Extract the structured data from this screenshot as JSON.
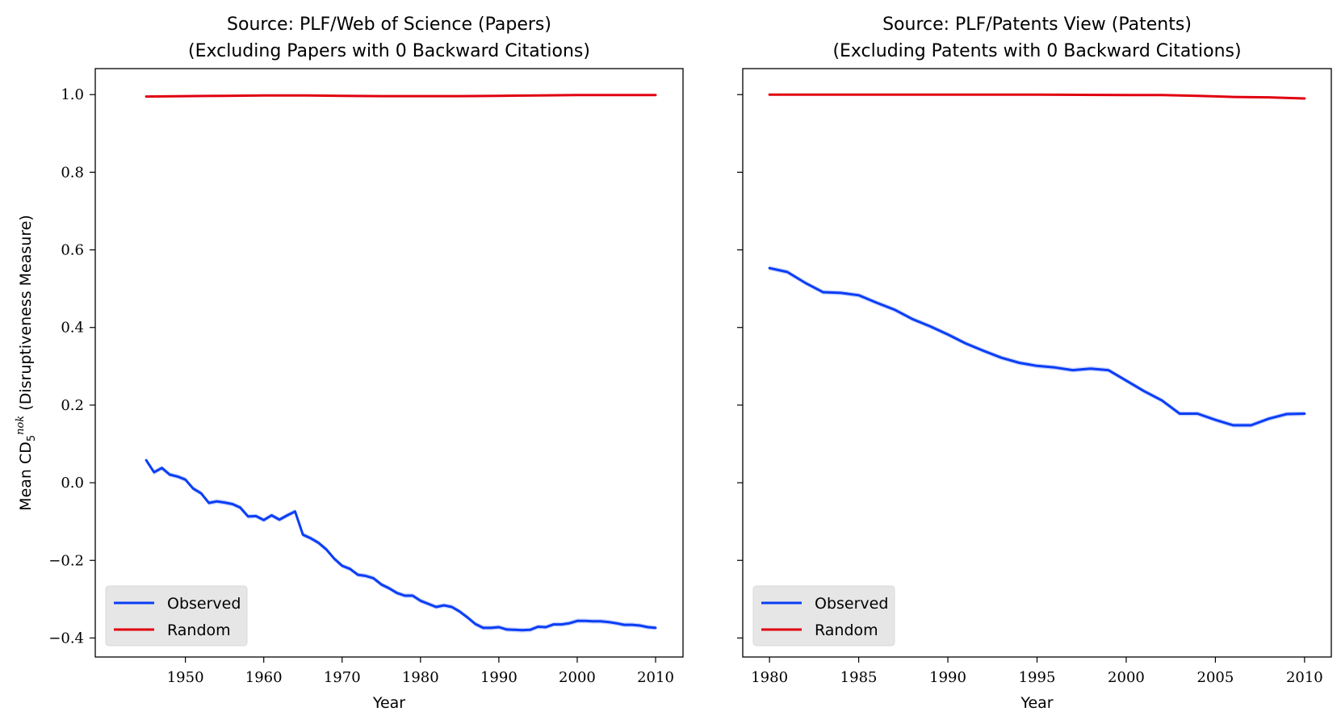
{
  "colors": {
    "observed": "#0b3df5",
    "random": "#e0000f",
    "band": "#9fb4ff"
  },
  "chart_data": [
    {
      "type": "line",
      "title": "Source: PLF/Web of Science (Papers)",
      "subtitle": "(Excluding Papers with 0 Backward Citations)",
      "xlabel": "Year",
      "ylabel": "Mean CD5nok (Disruptiveness Measure)",
      "ylabel_parts": {
        "main": "Mean CD",
        "sub": "5",
        "sup": "nok",
        "rest": " (Disruptiveness Measure)"
      },
      "xlim": [
        1938.5,
        2013.5
      ],
      "ylim": [
        -0.449,
        1.067
      ],
      "xticks": [
        1950,
        1960,
        1970,
        1980,
        1990,
        2000,
        2010
      ],
      "xtick_labels": [
        "1950",
        "1960",
        "1970",
        "1980",
        "1990",
        "2000",
        "2010"
      ],
      "yticks": [
        -0.4,
        -0.2,
        0.0,
        0.2,
        0.4,
        0.6,
        0.8,
        1.0
      ],
      "ytick_labels": [
        "−0.4",
        "−0.2",
        "0.0",
        "0.2",
        "0.4",
        "0.6",
        "0.8",
        "1.0"
      ],
      "show_ytick_labels": true,
      "grid": false,
      "legend": {
        "placement": "lower-left",
        "entries": [
          "Observed",
          "Random"
        ]
      },
      "series": [
        {
          "name": "Observed",
          "color_key": "observed",
          "x": [
            1945,
            1946,
            1947,
            1948,
            1949,
            1950,
            1951,
            1952,
            1953,
            1954,
            1955,
            1956,
            1957,
            1958,
            1959,
            1960,
            1961,
            1962,
            1963,
            1964,
            1965,
            1966,
            1967,
            1968,
            1969,
            1970,
            1971,
            1972,
            1973,
            1974,
            1975,
            1976,
            1977,
            1978,
            1979,
            1980,
            1981,
            1982,
            1983,
            1984,
            1985,
            1986,
            1987,
            1988,
            1989,
            1990,
            1991,
            1992,
            1993,
            1994,
            1995,
            1996,
            1997,
            1998,
            1999,
            2000,
            2001,
            2002,
            2003,
            2004,
            2005,
            2006,
            2007,
            2008,
            2009,
            2010
          ],
          "y": [
            0.058,
            0.027,
            0.038,
            0.021,
            0.016,
            0.008,
            -0.015,
            -0.027,
            -0.052,
            -0.048,
            -0.051,
            -0.055,
            -0.064,
            -0.087,
            -0.086,
            -0.096,
            -0.084,
            -0.095,
            -0.084,
            -0.074,
            -0.134,
            -0.143,
            -0.155,
            -0.172,
            -0.196,
            -0.214,
            -0.222,
            -0.237,
            -0.24,
            -0.246,
            -0.262,
            -0.272,
            -0.284,
            -0.291,
            -0.291,
            -0.304,
            -0.312,
            -0.32,
            -0.316,
            -0.32,
            -0.332,
            -0.347,
            -0.364,
            -0.374,
            -0.374,
            -0.372,
            -0.378,
            -0.379,
            -0.38,
            -0.379,
            -0.371,
            -0.372,
            -0.365,
            -0.365,
            -0.362,
            -0.356,
            -0.356,
            -0.357,
            -0.357,
            -0.359,
            -0.362,
            -0.366,
            -0.366,
            -0.368,
            -0.372,
            -0.374
          ],
          "ci": 0.006
        },
        {
          "name": "Random",
          "color_key": "random",
          "x": [
            1945,
            1950,
            1955,
            1960,
            1965,
            1970,
            1975,
            1980,
            1985,
            1990,
            1995,
            2000,
            2005,
            2010
          ],
          "y": [
            0.995,
            0.996,
            0.997,
            0.998,
            0.998,
            0.997,
            0.996,
            0.996,
            0.996,
            0.997,
            0.998,
            0.999,
            0.999,
            0.999
          ]
        }
      ]
    },
    {
      "type": "line",
      "title": "Source: PLF/Patents View (Patents)",
      "subtitle": "(Excluding Patents with 0 Backward Citations)",
      "xlabel": "Year",
      "xlim": [
        1978.5,
        2011.5
      ],
      "ylim": [
        -0.449,
        1.067
      ],
      "xticks": [
        1980,
        1985,
        1990,
        1995,
        2000,
        2005,
        2010
      ],
      "xtick_labels": [
        "1980",
        "1985",
        "1990",
        "1995",
        "2000",
        "2005",
        "2010"
      ],
      "yticks": [
        -0.4,
        -0.2,
        0.0,
        0.2,
        0.4,
        0.6,
        0.8,
        1.0
      ],
      "show_ytick_labels": false,
      "grid": false,
      "legend": {
        "placement": "lower-left",
        "entries": [
          "Observed",
          "Random"
        ]
      },
      "series": [
        {
          "name": "Observed",
          "color_key": "observed",
          "x": [
            1980,
            1981,
            1982,
            1983,
            1984,
            1985,
            1986,
            1987,
            1988,
            1989,
            1990,
            1991,
            1992,
            1993,
            1994,
            1995,
            1996,
            1997,
            1998,
            1999,
            2000,
            2001,
            2002,
            2003,
            2004,
            2005,
            2006,
            2007,
            2008,
            2009,
            2010
          ],
          "y": [
            0.553,
            0.543,
            0.515,
            0.491,
            0.489,
            0.483,
            0.464,
            0.446,
            0.422,
            0.403,
            0.382,
            0.359,
            0.34,
            0.322,
            0.309,
            0.301,
            0.297,
            0.29,
            0.294,
            0.29,
            0.263,
            0.236,
            0.212,
            0.178,
            0.178,
            0.162,
            0.148,
            0.148,
            0.165,
            0.177,
            0.178
          ],
          "ci": 0.006
        },
        {
          "name": "Random",
          "color_key": "random",
          "x": [
            1980,
            1985,
            1990,
            1995,
            2000,
            2002,
            2004,
            2006,
            2008,
            2010
          ],
          "y": [
            1.0,
            1.0,
            1.0,
            1.0,
            0.999,
            0.999,
            0.997,
            0.994,
            0.993,
            0.99
          ]
        }
      ]
    }
  ]
}
